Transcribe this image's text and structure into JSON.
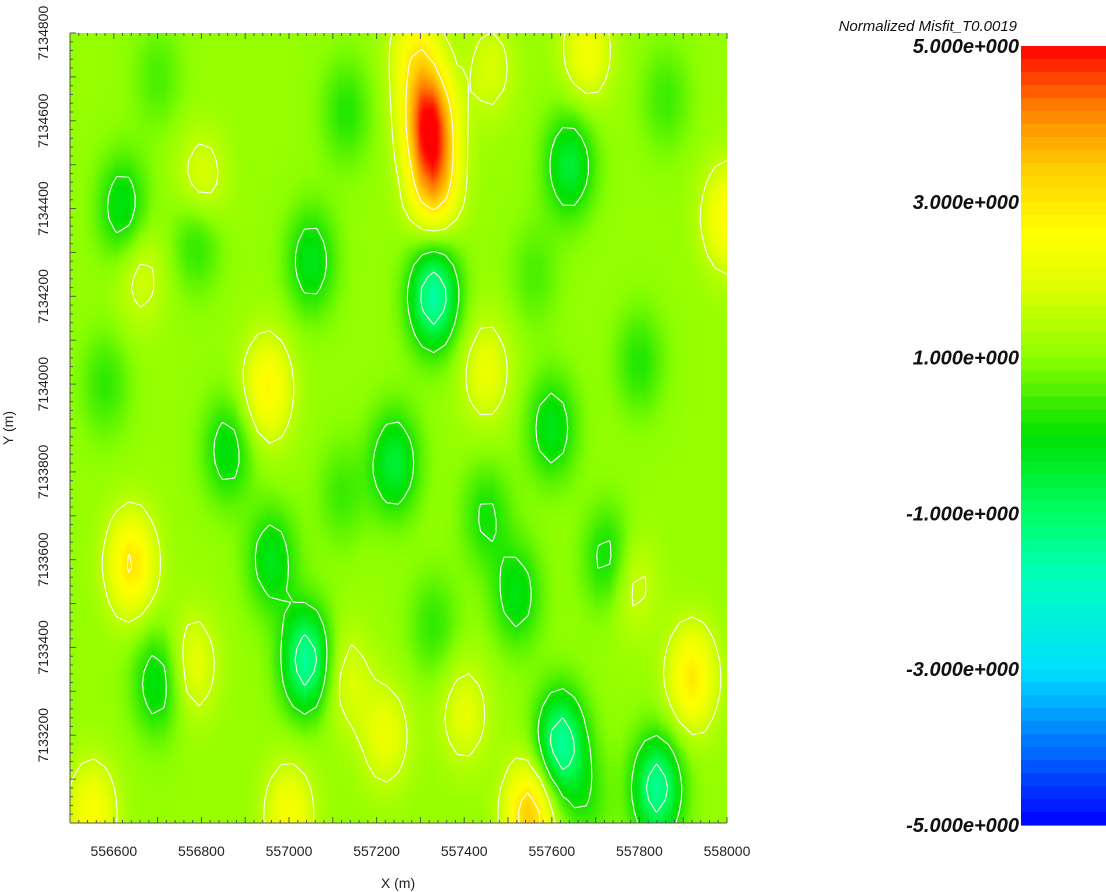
{
  "chart_data": {
    "type": "heatmap",
    "title": "",
    "xlabel": "X (m)",
    "ylabel": "Y (m)",
    "xlim": [
      556500,
      558000
    ],
    "ylim": [
      7133000,
      7134800
    ],
    "x_ticks": [
      556600,
      556800,
      557000,
      557200,
      557400,
      557600,
      557800,
      558000
    ],
    "y_ticks": [
      7133200,
      7133400,
      7133600,
      7133800,
      7134000,
      7134200,
      7134400,
      7134600,
      7134800
    ],
    "colorbar": {
      "title": "Normalized Misfit_T0.0019",
      "range": [
        -5,
        5
      ],
      "labels": [
        "5.000e+000",
        "3.000e+000",
        "1.000e+000",
        "-1.000e+000",
        "-3.000e+000",
        "-5.000e+000"
      ],
      "label_values": [
        5,
        3,
        1,
        -1,
        -3,
        -5
      ],
      "color_stops": [
        {
          "value": -5,
          "color": "#0000ff"
        },
        {
          "value": -3,
          "color": "#00e0ff"
        },
        {
          "value": -1.8,
          "color": "#00ffbb"
        },
        {
          "value": -1,
          "color": "#00ff66"
        },
        {
          "value": 0,
          "color": "#00e000"
        },
        {
          "value": 1,
          "color": "#8cff00"
        },
        {
          "value": 2,
          "color": "#e6ff00"
        },
        {
          "value": 2.6,
          "color": "#ffff00"
        },
        {
          "value": 3.4,
          "color": "#ffd000"
        },
        {
          "value": 4.2,
          "color": "#ff8000"
        },
        {
          "value": 5,
          "color": "#ff0000"
        }
      ]
    },
    "contours_color": "#ffffff",
    "background_value": 1.1,
    "features": [
      {
        "x": 557320,
        "y": 7134600,
        "value": 4.6
      },
      {
        "x": 557330,
        "y": 7134460,
        "value": 3.6
      },
      {
        "x": 557550,
        "y": 7133020,
        "value": 3.6
      },
      {
        "x": 556640,
        "y": 7133590,
        "value": 3.1
      },
      {
        "x": 556950,
        "y": 7133990,
        "value": 2.8
      },
      {
        "x": 557920,
        "y": 7133330,
        "value": 3.0
      },
      {
        "x": 557290,
        "y": 7134750,
        "value": 2.6
      },
      {
        "x": 557680,
        "y": 7134760,
        "value": 2.4
      },
      {
        "x": 558000,
        "y": 7134380,
        "value": 2.7
      },
      {
        "x": 556550,
        "y": 7133020,
        "value": 2.6
      },
      {
        "x": 556800,
        "y": 7134450,
        "value": 2.2
      },
      {
        "x": 557450,
        "y": 7134030,
        "value": 2.2
      },
      {
        "x": 556780,
        "y": 7133360,
        "value": 2.2
      },
      {
        "x": 557130,
        "y": 7133330,
        "value": 2.0
      },
      {
        "x": 557220,
        "y": 7133200,
        "value": 2.2
      },
      {
        "x": 557400,
        "y": 7133250,
        "value": 2.1
      },
      {
        "x": 557000,
        "y": 7133020,
        "value": 2.5
      },
      {
        "x": 557780,
        "y": 7133550,
        "value": 2.0
      },
      {
        "x": 557460,
        "y": 7134720,
        "value": 1.9
      },
      {
        "x": 556660,
        "y": 7134250,
        "value": 1.9
      },
      {
        "x": 557330,
        "y": 7134200,
        "value": -1.7
      },
      {
        "x": 557040,
        "y": 7133370,
        "value": -1.6
      },
      {
        "x": 557620,
        "y": 7133180,
        "value": -1.6
      },
      {
        "x": 557840,
        "y": 7133080,
        "value": -1.5
      },
      {
        "x": 557240,
        "y": 7133820,
        "value": -0.6
      },
      {
        "x": 556790,
        "y": 7134340,
        "value": 0.0
      },
      {
        "x": 556860,
        "y": 7133850,
        "value": -0.2
      },
      {
        "x": 557050,
        "y": 7134280,
        "value": -0.3
      },
      {
        "x": 557640,
        "y": 7134500,
        "value": -0.6
      },
      {
        "x": 557600,
        "y": 7133900,
        "value": -0.3
      },
      {
        "x": 556620,
        "y": 7134400,
        "value": -0.3
      },
      {
        "x": 556960,
        "y": 7133600,
        "value": -0.3
      },
      {
        "x": 557520,
        "y": 7133520,
        "value": -0.2
      },
      {
        "x": 557730,
        "y": 7133600,
        "value": -0.2
      },
      {
        "x": 556700,
        "y": 7133320,
        "value": -0.3
      },
      {
        "x": 557450,
        "y": 7133700,
        "value": 0.1
      },
      {
        "x": 557800,
        "y": 7134050,
        "value": 0.2
      },
      {
        "x": 557130,
        "y": 7134620,
        "value": 0.2
      },
      {
        "x": 557860,
        "y": 7134650,
        "value": 0.4
      },
      {
        "x": 556580,
        "y": 7134000,
        "value": 0.3
      },
      {
        "x": 556700,
        "y": 7134700,
        "value": 0.5
      },
      {
        "x": 557560,
        "y": 7134250,
        "value": 0.5
      },
      {
        "x": 557330,
        "y": 7133450,
        "value": 0.3
      },
      {
        "x": 557680,
        "y": 7133050,
        "value": 0.4
      },
      {
        "x": 557120,
        "y": 7133750,
        "value": 0.4
      }
    ]
  }
}
